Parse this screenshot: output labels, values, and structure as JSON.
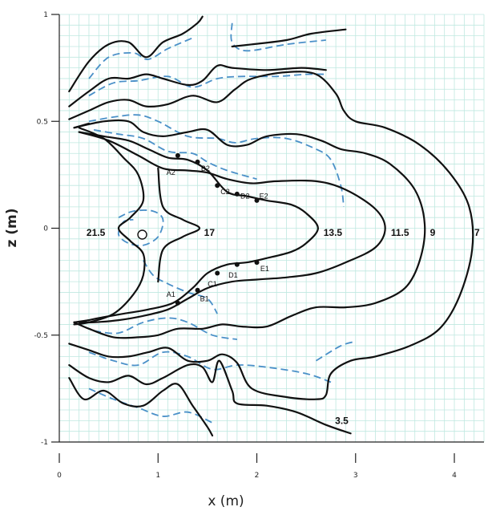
{
  "chart_data": {
    "type": "contour",
    "xlabel": "x (m)",
    "ylabel": "z (m)",
    "xlim": [
      0,
      4.3
    ],
    "ylim": [
      -1,
      1
    ],
    "x_ticks": [
      {
        "v": 0,
        "label": "0"
      },
      {
        "v": 1,
        "label": "1"
      },
      {
        "v": 2,
        "label": "2"
      },
      {
        "v": 3,
        "label": "3"
      },
      {
        "v": 4,
        "label": "4"
      }
    ],
    "y_ticks": [
      {
        "v": 1,
        "label": "1"
      },
      {
        "v": 0.5,
        "label": "0.5"
      },
      {
        "v": 0,
        "label": "0"
      },
      {
        "v": -0.5,
        "label": "-0.5"
      },
      {
        "v": -1,
        "label": "-1"
      }
    ],
    "grid": true,
    "grid_color": "#bfe8e0",
    "solid_color": "#111111",
    "dashed_color": "#4a90c8",
    "contour_labels": [
      {
        "text": "21.5",
        "x": 0.37,
        "y": -0.02
      },
      {
        "text": "17",
        "x": 1.52,
        "y": -0.02
      },
      {
        "text": "13.5",
        "x": 2.77,
        "y": -0.02
      },
      {
        "text": "11.5",
        "x": 3.45,
        "y": -0.02
      },
      {
        "text": "9",
        "x": 3.78,
        "y": -0.02
      },
      {
        "text": "7",
        "x": 4.23,
        "y": -0.02
      },
      {
        "text": "3.5",
        "x": 2.86,
        "y": -0.9
      }
    ],
    "points": [
      {
        "name": "A2",
        "x": 1.2,
        "y": 0.34,
        "lx": 1.13,
        "ly": 0.26
      },
      {
        "name": "B2",
        "x": 1.4,
        "y": 0.31,
        "lx": 1.48,
        "ly": 0.28
      },
      {
        "name": "C2",
        "x": 1.6,
        "y": 0.2,
        "lx": 1.68,
        "ly": 0.17
      },
      {
        "name": "D2",
        "x": 1.8,
        "y": 0.16,
        "lx": 1.88,
        "ly": 0.15
      },
      {
        "name": "E2",
        "x": 2.0,
        "y": 0.13,
        "lx": 2.07,
        "ly": 0.15
      },
      {
        "name": "A1",
        "x": 1.2,
        "y": -0.35,
        "lx": 1.13,
        "ly": -0.31
      },
      {
        "name": "B1",
        "x": 1.4,
        "y": -0.29,
        "lx": 1.47,
        "ly": -0.33
      },
      {
        "name": "C1",
        "x": 1.6,
        "y": -0.21,
        "lx": 1.55,
        "ly": -0.26
      },
      {
        "name": "D1",
        "x": 1.8,
        "y": -0.17,
        "lx": 1.76,
        "ly": -0.22
      },
      {
        "name": "E1",
        "x": 2.0,
        "y": -0.16,
        "lx": 2.08,
        "ly": -0.19
      }
    ],
    "source_marker": {
      "x": 0.84,
      "y": -0.03
    },
    "solid_lines": [
      [
        [
          0.1,
          0.64
        ],
        [
          0.3,
          0.78
        ],
        [
          0.5,
          0.86
        ],
        [
          0.7,
          0.87
        ],
        [
          0.88,
          0.8
        ],
        [
          1.05,
          0.87
        ],
        [
          1.25,
          0.91
        ],
        [
          1.4,
          0.96
        ],
        [
          1.45,
          0.99
        ]
      ],
      [
        [
          1.75,
          0.85
        ],
        [
          1.95,
          0.86
        ],
        [
          2.3,
          0.88
        ],
        [
          2.55,
          0.91
        ],
        [
          2.9,
          0.93
        ]
      ],
      [
        [
          0.1,
          0.57
        ],
        [
          0.3,
          0.64
        ],
        [
          0.5,
          0.7
        ],
        [
          0.7,
          0.7
        ],
        [
          0.88,
          0.72
        ],
        [
          1.05,
          0.7
        ],
        [
          1.3,
          0.67
        ],
        [
          1.45,
          0.69
        ],
        [
          1.6,
          0.76
        ],
        [
          1.75,
          0.75
        ],
        [
          2.1,
          0.74
        ],
        [
          2.45,
          0.75
        ],
        [
          2.7,
          0.74
        ]
      ],
      [
        [
          0.1,
          0.51
        ],
        [
          0.3,
          0.55
        ],
        [
          0.5,
          0.59
        ],
        [
          0.7,
          0.6
        ],
        [
          0.88,
          0.57
        ],
        [
          1.1,
          0.58
        ],
        [
          1.35,
          0.62
        ],
        [
          1.6,
          0.59
        ],
        [
          1.78,
          0.65
        ],
        [
          1.95,
          0.7
        ],
        [
          2.3,
          0.73
        ],
        [
          2.6,
          0.72
        ],
        [
          2.8,
          0.63
        ],
        [
          2.88,
          0.55
        ],
        [
          3.0,
          0.5
        ],
        [
          3.3,
          0.47
        ],
        [
          3.65,
          0.39
        ],
        [
          3.95,
          0.26
        ],
        [
          4.15,
          0.1
        ],
        [
          4.18,
          -0.1
        ],
        [
          4.05,
          -0.32
        ],
        [
          3.85,
          -0.47
        ],
        [
          3.55,
          -0.55
        ],
        [
          3.2,
          -0.6
        ],
        [
          2.95,
          -0.62
        ],
        [
          2.75,
          -0.68
        ],
        [
          2.7,
          -0.78
        ],
        [
          2.6,
          -0.8
        ],
        [
          2.3,
          -0.79
        ],
        [
          1.95,
          -0.75
        ],
        [
          1.8,
          -0.63
        ],
        [
          1.65,
          -0.59
        ],
        [
          1.5,
          -0.62
        ],
        [
          1.3,
          -0.62
        ],
        [
          1.1,
          -0.56
        ],
        [
          0.9,
          -0.58
        ],
        [
          0.7,
          -0.6
        ],
        [
          0.5,
          -0.6
        ],
        [
          0.3,
          -0.57
        ],
        [
          0.1,
          -0.54
        ]
      ],
      [
        [
          0.15,
          0.47
        ],
        [
          0.45,
          0.5
        ],
        [
          0.7,
          0.5
        ],
        [
          0.85,
          0.45
        ],
        [
          1.05,
          0.43
        ],
        [
          1.3,
          0.45
        ],
        [
          1.5,
          0.46
        ],
        [
          1.7,
          0.39
        ],
        [
          1.9,
          0.39
        ],
        [
          2.1,
          0.43
        ],
        [
          2.4,
          0.44
        ],
        [
          2.65,
          0.41
        ],
        [
          2.85,
          0.37
        ],
        [
          3.1,
          0.35
        ],
        [
          3.35,
          0.3
        ],
        [
          3.6,
          0.18
        ],
        [
          3.7,
          0.02
        ],
        [
          3.65,
          -0.15
        ],
        [
          3.5,
          -0.28
        ],
        [
          3.2,
          -0.35
        ],
        [
          2.9,
          -0.37
        ],
        [
          2.6,
          -0.37
        ],
        [
          2.35,
          -0.41
        ],
        [
          2.1,
          -0.46
        ],
        [
          1.85,
          -0.46
        ],
        [
          1.65,
          -0.45
        ],
        [
          1.45,
          -0.47
        ],
        [
          1.2,
          -0.47
        ],
        [
          1.0,
          -0.5
        ],
        [
          0.8,
          -0.51
        ],
        [
          0.55,
          -0.51
        ],
        [
          0.3,
          -0.47
        ],
        [
          0.15,
          -0.44
        ]
      ],
      [
        [
          0.2,
          0.45
        ],
        [
          0.5,
          0.41
        ],
        [
          0.8,
          0.34
        ],
        [
          1.05,
          0.28
        ],
        [
          1.3,
          0.27
        ],
        [
          1.5,
          0.26
        ],
        [
          1.7,
          0.23
        ],
        [
          1.95,
          0.21
        ],
        [
          2.2,
          0.22
        ],
        [
          2.6,
          0.22
        ],
        [
          2.9,
          0.18
        ],
        [
          3.2,
          0.09
        ],
        [
          3.3,
          0.0
        ],
        [
          3.2,
          -0.09
        ],
        [
          2.9,
          -0.16
        ],
        [
          2.6,
          -0.21
        ],
        [
          2.3,
          -0.23
        ],
        [
          2.0,
          -0.24
        ],
        [
          1.75,
          -0.25
        ],
        [
          1.5,
          -0.28
        ],
        [
          1.3,
          -0.33
        ],
        [
          1.1,
          -0.38
        ],
        [
          0.85,
          -0.41
        ],
        [
          0.6,
          -0.43
        ],
        [
          0.35,
          -0.44
        ],
        [
          0.2,
          -0.44
        ]
      ],
      [
        [
          0.2,
          0.45
        ],
        [
          0.45,
          0.43
        ],
        [
          0.7,
          0.41
        ],
        [
          0.9,
          0.37
        ],
        [
          1.1,
          0.33
        ],
        [
          1.3,
          0.32
        ],
        [
          1.5,
          0.27
        ],
        [
          1.7,
          0.17
        ],
        [
          1.9,
          0.15
        ],
        [
          2.1,
          0.13
        ],
        [
          2.35,
          0.11
        ],
        [
          2.5,
          0.07
        ],
        [
          2.62,
          0.0
        ],
        [
          2.5,
          -0.07
        ],
        [
          2.35,
          -0.11
        ],
        [
          2.1,
          -0.14
        ],
        [
          1.9,
          -0.16
        ],
        [
          1.7,
          -0.17
        ],
        [
          1.5,
          -0.21
        ],
        [
          1.35,
          -0.28
        ],
        [
          1.15,
          -0.35
        ],
        [
          0.9,
          -0.38
        ],
        [
          0.65,
          -0.4
        ],
        [
          0.4,
          -0.42
        ],
        [
          0.2,
          -0.44
        ]
      ],
      [
        [
          0.2,
          0.47
        ],
        [
          0.45,
          0.42
        ],
        [
          0.65,
          0.33
        ],
        [
          0.8,
          0.25
        ],
        [
          0.85,
          0.13
        ],
        [
          0.72,
          0.05
        ],
        [
          0.6,
          0.0
        ],
        [
          0.72,
          -0.06
        ],
        [
          0.85,
          -0.12
        ],
        [
          0.85,
          -0.22
        ],
        [
          0.75,
          -0.31
        ],
        [
          0.55,
          -0.4
        ],
        [
          0.3,
          -0.44
        ],
        [
          0.15,
          -0.45
        ]
      ],
      [
        [
          1.0,
          0.28
        ],
        [
          1.05,
          0.1
        ],
        [
          1.25,
          0.04
        ],
        [
          1.42,
          0.0
        ],
        [
          1.25,
          -0.04
        ],
        [
          1.05,
          -0.1
        ],
        [
          1.0,
          -0.25
        ]
      ],
      [
        [
          0.15,
          0.47
        ],
        [
          0.3,
          0.49
        ]
      ],
      [
        [
          0.1,
          -0.7
        ],
        [
          0.25,
          -0.8
        ],
        [
          0.45,
          -0.76
        ],
        [
          0.65,
          -0.82
        ],
        [
          0.85,
          -0.83
        ],
        [
          1.05,
          -0.76
        ],
        [
          1.2,
          -0.73
        ],
        [
          1.35,
          -0.83
        ],
        [
          1.5,
          -0.93
        ],
        [
          1.55,
          -0.97
        ]
      ],
      [
        [
          0.1,
          -0.64
        ],
        [
          0.3,
          -0.7
        ],
        [
          0.5,
          -0.72
        ],
        [
          0.7,
          -0.69
        ],
        [
          0.88,
          -0.73
        ],
        [
          1.05,
          -0.7
        ],
        [
          1.3,
          -0.64
        ],
        [
          1.45,
          -0.65
        ],
        [
          1.55,
          -0.72
        ],
        [
          1.62,
          -0.62
        ],
        [
          1.75,
          -0.76
        ],
        [
          1.8,
          -0.82
        ],
        [
          2.1,
          -0.83
        ],
        [
          2.4,
          -0.86
        ],
        [
          2.7,
          -0.92
        ],
        [
          2.95,
          -0.96
        ]
      ],
      [
        [
          0.15,
          -0.44
        ],
        [
          0.3,
          -0.43
        ]
      ]
    ],
    "dashed_lines": [
      [
        [
          0.3,
          0.7
        ],
        [
          0.5,
          0.8
        ],
        [
          0.75,
          0.82
        ],
        [
          0.9,
          0.79
        ],
        [
          1.1,
          0.84
        ],
        [
          1.35,
          0.89
        ]
      ],
      [
        [
          1.75,
          0.96
        ],
        [
          1.75,
          0.87
        ],
        [
          1.9,
          0.83
        ],
        [
          2.3,
          0.86
        ],
        [
          2.7,
          0.88
        ]
      ],
      [
        [
          0.3,
          0.62
        ],
        [
          0.55,
          0.68
        ],
        [
          0.8,
          0.69
        ],
        [
          1.1,
          0.71
        ],
        [
          1.35,
          0.66
        ],
        [
          1.6,
          0.7
        ],
        [
          1.85,
          0.71
        ],
        [
          2.2,
          0.71
        ],
        [
          2.5,
          0.72
        ],
        [
          2.7,
          0.72
        ]
      ],
      [
        [
          0.3,
          0.5
        ],
        [
          0.55,
          0.52
        ],
        [
          0.8,
          0.53
        ],
        [
          1.0,
          0.5
        ],
        [
          1.3,
          0.43
        ],
        [
          1.6,
          0.42
        ],
        [
          1.78,
          0.4
        ],
        [
          2.0,
          0.42
        ],
        [
          2.3,
          0.42
        ],
        [
          2.6,
          0.37
        ],
        [
          2.75,
          0.32
        ],
        [
          2.85,
          0.2
        ],
        [
          2.88,
          0.1
        ]
      ],
      [
        [
          0.35,
          0.46
        ],
        [
          0.6,
          0.44
        ],
        [
          0.85,
          0.42
        ],
        [
          1.1,
          0.36
        ],
        [
          1.35,
          0.35
        ],
        [
          1.5,
          0.31
        ],
        [
          1.7,
          0.27
        ],
        [
          2.0,
          0.23
        ]
      ],
      [
        [
          0.6,
          0.05
        ],
        [
          0.75,
          0.08
        ],
        [
          0.95,
          0.08
        ],
        [
          1.05,
          0.04
        ],
        [
          1.0,
          -0.04
        ],
        [
          0.85,
          -0.08
        ],
        [
          0.7,
          -0.07
        ],
        [
          0.6,
          -0.03
        ],
        [
          0.65,
          0.03
        ],
        [
          0.75,
          0.04
        ]
      ],
      [
        [
          0.85,
          -0.15
        ],
        [
          0.95,
          -0.22
        ],
        [
          1.1,
          -0.26
        ],
        [
          1.3,
          -0.3
        ],
        [
          1.5,
          -0.33
        ],
        [
          1.6,
          -0.4
        ]
      ],
      [
        [
          0.35,
          -0.48
        ],
        [
          0.6,
          -0.49
        ],
        [
          0.85,
          -0.44
        ],
        [
          1.1,
          -0.42
        ],
        [
          1.3,
          -0.44
        ],
        [
          1.55,
          -0.5
        ],
        [
          1.8,
          -0.52
        ]
      ],
      [
        [
          0.3,
          -0.58
        ],
        [
          0.55,
          -0.62
        ],
        [
          0.8,
          -0.64
        ],
        [
          1.05,
          -0.58
        ],
        [
          1.3,
          -0.6
        ],
        [
          1.55,
          -0.66
        ],
        [
          1.8,
          -0.64
        ],
        [
          2.1,
          -0.65
        ],
        [
          2.5,
          -0.68
        ],
        [
          2.75,
          -0.72
        ]
      ],
      [
        [
          0.3,
          -0.75
        ],
        [
          0.55,
          -0.8
        ],
        [
          0.8,
          -0.84
        ],
        [
          1.05,
          -0.88
        ],
        [
          1.3,
          -0.86
        ],
        [
          1.55,
          -0.91
        ]
      ],
      [
        [
          2.6,
          -0.62
        ],
        [
          2.85,
          -0.55
        ],
        [
          3.0,
          -0.53
        ]
      ]
    ]
  }
}
